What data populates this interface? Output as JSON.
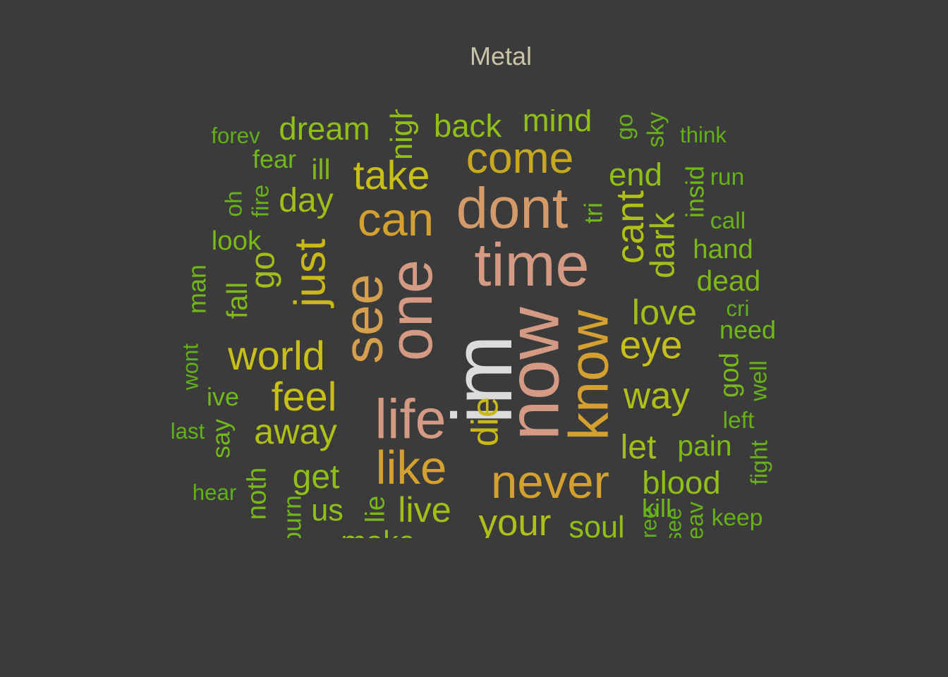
{
  "chart_data": {
    "type": "wordcloud",
    "title": "Metal",
    "palette": {
      "background": "#3b3b3b",
      "title": "#c8c4a8"
    },
    "words": [
      {
        "text": "im",
        "weight": 100,
        "color": "#dcdcdc"
      },
      {
        "text": "now",
        "weight": 86,
        "color": "#d49a84"
      },
      {
        "text": "time",
        "weight": 72,
        "color": "#d49a84"
      },
      {
        "text": "one",
        "weight": 72,
        "color": "#d49a84"
      },
      {
        "text": "dont",
        "weight": 68,
        "color": "#d49a6a"
      },
      {
        "text": "see",
        "weight": 66,
        "color": "#d4a050"
      },
      {
        "text": "know",
        "weight": 66,
        "color": "#d4a030"
      },
      {
        "text": "life",
        "weight": 66,
        "color": "#d49a84"
      },
      {
        "text": "can",
        "weight": 56,
        "color": "#d4a030"
      },
      {
        "text": "never",
        "weight": 56,
        "color": "#d4a030"
      },
      {
        "text": "like",
        "weight": 56,
        "color": "#d4a030"
      },
      {
        "text": "come",
        "weight": 52,
        "color": "#c8a820"
      },
      {
        "text": "just",
        "weight": 52,
        "color": "#c8b818"
      },
      {
        "text": "take",
        "weight": 48,
        "color": "#c8c018"
      },
      {
        "text": "world",
        "weight": 48,
        "color": "#c8c018"
      },
      {
        "text": "feel",
        "weight": 48,
        "color": "#c8c018"
      },
      {
        "text": "cant",
        "weight": 46,
        "color": "#b0c018"
      },
      {
        "text": "eye",
        "weight": 46,
        "color": "#c8c018"
      },
      {
        "text": "die",
        "weight": 44,
        "color": "#c8b818"
      },
      {
        "text": "way",
        "weight": 44,
        "color": "#b0c018"
      },
      {
        "text": "your",
        "weight": 44,
        "color": "#b0c018"
      },
      {
        "text": "away",
        "weight": 42,
        "color": "#b0c018"
      },
      {
        "text": "love",
        "weight": 42,
        "color": "#a0c018"
      },
      {
        "text": "live",
        "weight": 42,
        "color": "#a0c018"
      },
      {
        "text": "go",
        "weight": 40,
        "color": "#a0c018"
      },
      {
        "text": "day",
        "weight": 40,
        "color": "#a0c018"
      },
      {
        "text": "dark",
        "weight": 40,
        "color": "#a0c018"
      },
      {
        "text": "let",
        "weight": 40,
        "color": "#a0c018"
      },
      {
        "text": "get",
        "weight": 40,
        "color": "#90c018"
      },
      {
        "text": "end",
        "weight": 38,
        "color": "#90c018"
      },
      {
        "text": "blood",
        "weight": 38,
        "color": "#90c018"
      },
      {
        "text": "mind",
        "weight": 38,
        "color": "#90c018"
      },
      {
        "text": "back",
        "weight": 38,
        "color": "#90c018"
      },
      {
        "text": "dream",
        "weight": 38,
        "color": "#90c018"
      },
      {
        "text": "soul",
        "weight": 36,
        "color": "#90c018"
      },
      {
        "text": "us",
        "weight": 36,
        "color": "#90c018"
      },
      {
        "text": "make",
        "weight": 36,
        "color": "#90c018"
      },
      {
        "text": "night",
        "weight": 36,
        "color": "#90c018"
      },
      {
        "text": "dead",
        "weight": 34,
        "color": "#80b818"
      },
      {
        "text": "pain",
        "weight": 34,
        "color": "#80b818"
      },
      {
        "text": "ill",
        "weight": 34,
        "color": "#80b818"
      },
      {
        "text": "fall",
        "weight": 34,
        "color": "#80b818"
      },
      {
        "text": "god",
        "weight": 32,
        "color": "#78b818"
      },
      {
        "text": "lie",
        "weight": 32,
        "color": "#78b818"
      },
      {
        "text": "hand",
        "weight": 32,
        "color": "#78b818"
      },
      {
        "text": "look",
        "weight": 32,
        "color": "#78b818"
      },
      {
        "text": "noth",
        "weight": 32,
        "color": "#78b818"
      },
      {
        "text": "insid",
        "weight": 30,
        "color": "#70b818"
      },
      {
        "text": "man",
        "weight": 30,
        "color": "#70b818"
      },
      {
        "text": "ive",
        "weight": 30,
        "color": "#70b818"
      },
      {
        "text": "need",
        "weight": 30,
        "color": "#70b818"
      },
      {
        "text": "tri",
        "weight": 30,
        "color": "#70b818"
      },
      {
        "text": "fear",
        "weight": 30,
        "color": "#70b818"
      },
      {
        "text": "say",
        "weight": 30,
        "color": "#70b818"
      },
      {
        "text": "burn",
        "weight": 30,
        "color": "#70b818"
      },
      {
        "text": "kill",
        "weight": 30,
        "color": "#70b818"
      },
      {
        "text": "run",
        "weight": 28,
        "color": "#68b018"
      },
      {
        "text": "sky",
        "weight": 28,
        "color": "#68b018"
      },
      {
        "text": "go",
        "weight": 28,
        "color": "#68b018"
      },
      {
        "text": "call",
        "weight": 28,
        "color": "#68b018"
      },
      {
        "text": "oh",
        "weight": 28,
        "color": "#68b018"
      },
      {
        "text": "fire",
        "weight": 28,
        "color": "#68b018"
      },
      {
        "text": "well",
        "weight": 28,
        "color": "#68b018"
      },
      {
        "text": "left",
        "weight": 28,
        "color": "#68b018"
      },
      {
        "text": "fight",
        "weight": 28,
        "color": "#68b018"
      },
      {
        "text": "keep",
        "weight": 28,
        "color": "#68b018"
      },
      {
        "text": "leav",
        "weight": 28,
        "color": "#68b018"
      },
      {
        "text": "free",
        "weight": 26,
        "color": "#60b018"
      },
      {
        "text": "cri",
        "weight": 26,
        "color": "#60b018"
      },
      {
        "text": "think",
        "weight": 26,
        "color": "#60b018"
      },
      {
        "text": "forev",
        "weight": 26,
        "color": "#60b018"
      },
      {
        "text": "hear",
        "weight": 26,
        "color": "#60b018"
      },
      {
        "text": "last",
        "weight": 26,
        "color": "#60b018"
      },
      {
        "text": "wont",
        "weight": 26,
        "color": "#60b018"
      },
      {
        "text": "see",
        "weight": 26,
        "color": "#60b018"
      }
    ]
  }
}
